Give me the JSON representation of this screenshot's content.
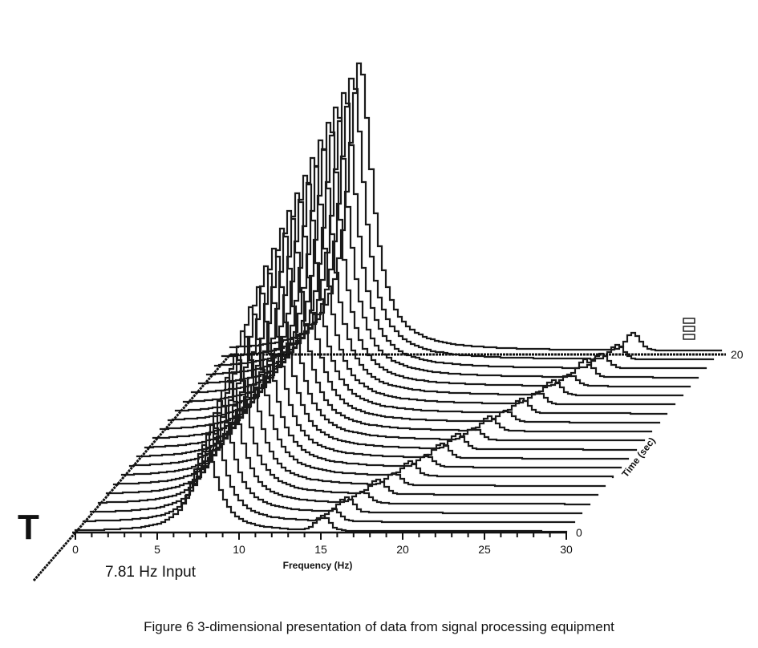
{
  "caption": "Figure 6  3-dimensional presentation of data from signal processing equipment",
  "corner_mark": "T",
  "input_label": "7.81 Hz Input",
  "colors": {
    "ink": "#111111",
    "background": "#ffffff"
  },
  "chart_data": {
    "type": "waterfall",
    "xlabel": "Frequency (Hz)",
    "zlabel": "Time (sec)",
    "x_ticks": [
      "0",
      "5",
      "10",
      "15",
      "20",
      "25",
      "30"
    ],
    "x_tick_values": [
      0,
      5,
      10,
      15,
      20,
      25,
      30
    ],
    "xlim": [
      0,
      30
    ],
    "time_ticks": [
      "0",
      "20"
    ],
    "time_tick_values": [
      0,
      20
    ],
    "time_range": [
      0,
      20
    ],
    "grid": false,
    "annotation": "7.81 Hz Input",
    "series": [
      {
        "time": 0,
        "peak_hz": 7.81,
        "peak_level": 0.3,
        "secondary_hz": 15.0,
        "secondary_level": 0.05
      },
      {
        "time": 1,
        "peak_hz": 7.81,
        "peak_level": 0.34,
        "secondary_hz": 15.2,
        "secondary_level": 0.04
      },
      {
        "time": 2,
        "peak_hz": 7.81,
        "peak_level": 0.39,
        "secondary_hz": 15.5,
        "secondary_level": 0.05
      },
      {
        "time": 3,
        "peak_hz": 7.81,
        "peak_level": 0.44,
        "secondary_hz": 16.0,
        "secondary_level": 0.04
      },
      {
        "time": 4,
        "peak_hz": 7.81,
        "peak_level": 0.49,
        "secondary_hz": 16.5,
        "secondary_level": 0.05
      },
      {
        "time": 5,
        "peak_hz": 7.81,
        "peak_level": 0.54,
        "secondary_hz": 17.0,
        "secondary_level": 0.04
      },
      {
        "time": 6,
        "peak_hz": 7.81,
        "peak_level": 0.59,
        "secondary_hz": 17.5,
        "secondary_level": 0.05
      },
      {
        "time": 7,
        "peak_hz": 7.81,
        "peak_level": 0.63,
        "secondary_hz": 18.0,
        "secondary_level": 0.04
      },
      {
        "time": 8,
        "peak_hz": 7.81,
        "peak_level": 0.67,
        "secondary_hz": 18.5,
        "secondary_level": 0.05
      },
      {
        "time": 9,
        "peak_hz": 7.81,
        "peak_level": 0.7,
        "secondary_hz": 19.0,
        "secondary_level": 0.05
      },
      {
        "time": 10,
        "peak_hz": 7.81,
        "peak_level": 0.74,
        "secondary_hz": 19.5,
        "secondary_level": 0.04
      },
      {
        "time": 11,
        "peak_hz": 7.81,
        "peak_level": 0.77,
        "secondary_hz": 20.0,
        "secondary_level": 0.05
      },
      {
        "time": 12,
        "peak_hz": 7.81,
        "peak_level": 0.8,
        "secondary_hz": 20.5,
        "secondary_level": 0.04
      },
      {
        "time": 13,
        "peak_hz": 7.81,
        "peak_level": 0.83,
        "secondary_hz": 21.0,
        "secondary_level": 0.05
      },
      {
        "time": 14,
        "peak_hz": 7.81,
        "peak_level": 0.86,
        "secondary_hz": 21.5,
        "secondary_level": 0.04
      },
      {
        "time": 15,
        "peak_hz": 7.81,
        "peak_level": 0.89,
        "secondary_hz": 22.0,
        "secondary_level": 0.05
      },
      {
        "time": 16,
        "peak_hz": 7.81,
        "peak_level": 0.92,
        "secondary_hz": 22.5,
        "secondary_level": 0.04
      },
      {
        "time": 17,
        "peak_hz": 7.81,
        "peak_level": 0.94,
        "secondary_hz": 23.0,
        "secondary_level": 0.06
      },
      {
        "time": 18,
        "peak_hz": 7.81,
        "peak_level": 0.96,
        "secondary_hz": 23.5,
        "secondary_level": 0.05
      },
      {
        "time": 19,
        "peak_hz": 7.81,
        "peak_level": 0.98,
        "secondary_hz": 24.0,
        "secondary_level": 0.05
      },
      {
        "time": 20,
        "peak_hz": 7.81,
        "peak_level": 1.0,
        "secondary_hz": 24.5,
        "secondary_level": 0.06
      }
    ]
  }
}
